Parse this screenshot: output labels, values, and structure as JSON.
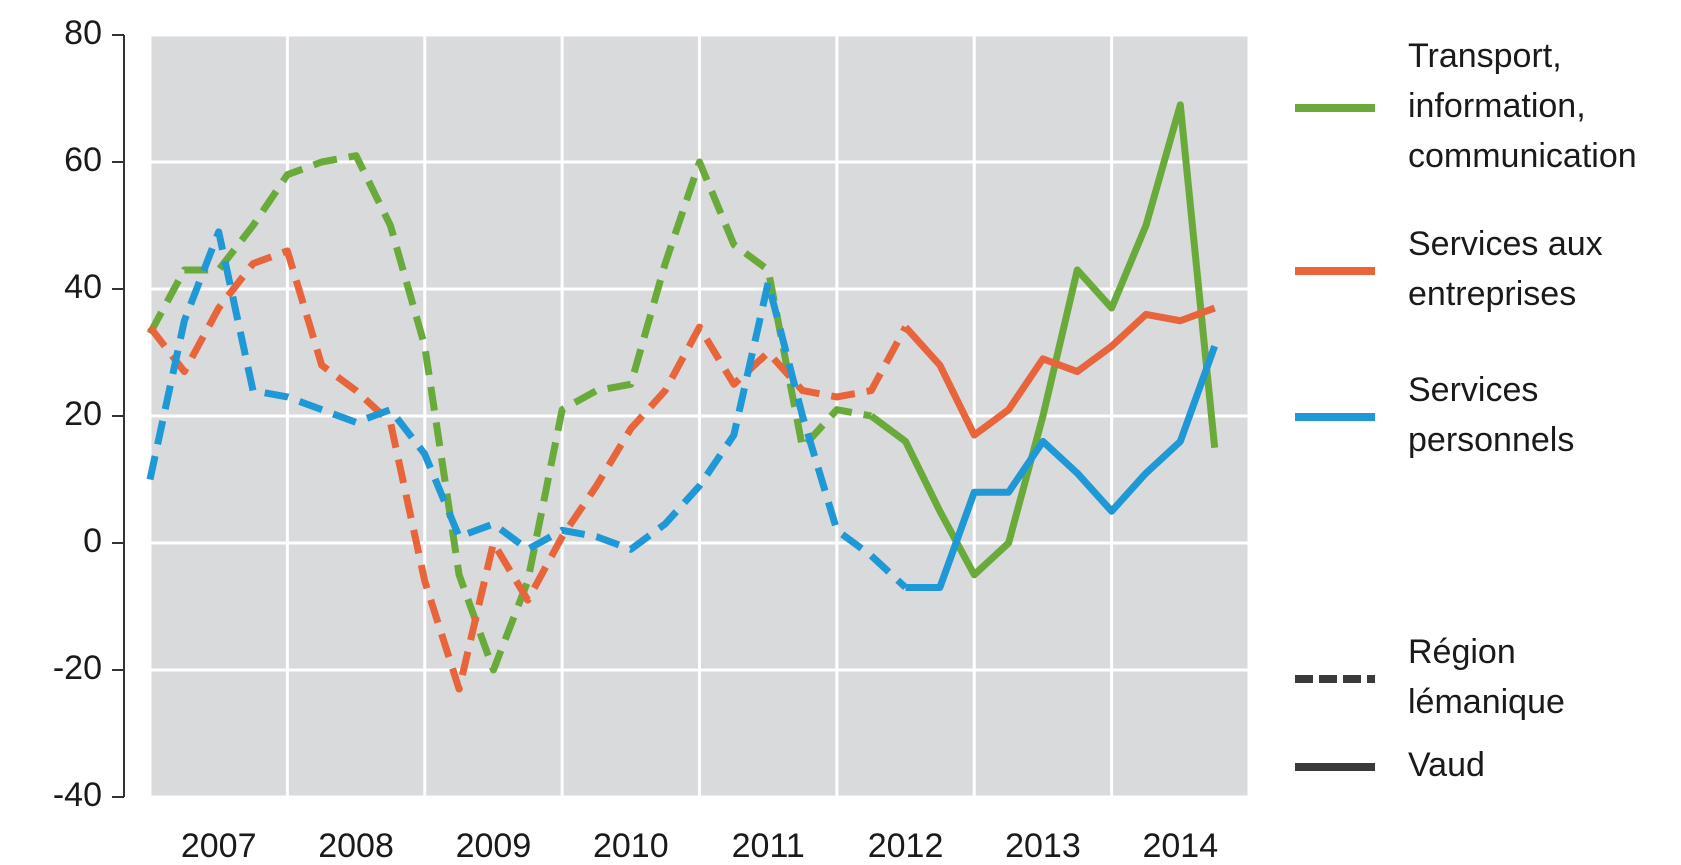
{
  "chart_data": {
    "type": "line",
    "x": [
      2007,
      2007.25,
      2007.5,
      2007.75,
      2008,
      2008.25,
      2008.5,
      2008.75,
      2009,
      2009.25,
      2009.5,
      2009.75,
      2010,
      2010.25,
      2010.5,
      2010.75,
      2011,
      2011.25,
      2011.5,
      2011.75,
      2012,
      2012.25,
      2012.5,
      2012.75,
      2013,
      2013.25,
      2013.5,
      2013.75,
      2014,
      2014.25,
      2014.5,
      2014.75
    ],
    "xlim": [
      2007,
      2015
    ],
    "xticks": [
      {
        "value": 2007.5,
        "label": "2007"
      },
      {
        "value": 2008.5,
        "label": "2008"
      },
      {
        "value": 2009.5,
        "label": "2009"
      },
      {
        "value": 2010.5,
        "label": "2010"
      },
      {
        "value": 2011.5,
        "label": "2011"
      },
      {
        "value": 2012.5,
        "label": "2012"
      },
      {
        "value": 2013.5,
        "label": "2013"
      },
      {
        "value": 2014.5,
        "label": "2014"
      }
    ],
    "ylim": [
      -40,
      80
    ],
    "yticks": [
      -40,
      -20,
      0,
      20,
      40,
      60,
      80
    ],
    "grid": true,
    "series": [
      {
        "name": "Transport, information, communication",
        "color": "#6aaa3a",
        "values": [
          33,
          43,
          43,
          50,
          58,
          60,
          61,
          50,
          31,
          -5,
          -20,
          -6,
          21,
          24,
          25,
          44,
          60,
          47,
          43,
          15,
          21,
          20,
          null,
          null,
          null,
          null,
          null,
          null,
          null,
          null,
          null,
          null
        ],
        "values_vaud": [
          null,
          null,
          null,
          null,
          null,
          null,
          null,
          null,
          null,
          null,
          null,
          null,
          null,
          null,
          null,
          null,
          null,
          null,
          null,
          null,
          null,
          20,
          16,
          5,
          -5,
          0,
          20,
          43,
          37,
          50,
          69,
          15
        ]
      },
      {
        "name": "Services aux entreprises",
        "color": "#e8643a",
        "values": [
          34,
          27,
          37,
          44,
          46,
          28,
          24,
          19,
          -6,
          -23,
          0,
          -9,
          1,
          9,
          18,
          24,
          34,
          25,
          30,
          24,
          23,
          24,
          34,
          null,
          null,
          null,
          null,
          null,
          null,
          null,
          null,
          null
        ],
        "values_vaud": [
          null,
          null,
          null,
          null,
          null,
          null,
          null,
          null,
          null,
          null,
          null,
          null,
          null,
          null,
          null,
          null,
          null,
          null,
          null,
          null,
          null,
          null,
          34,
          28,
          17,
          21,
          29,
          27,
          31,
          36,
          35,
          37
        ]
      },
      {
        "name": "Services personnels",
        "color": "#1f98d6",
        "values": [
          10,
          35,
          49,
          24,
          23,
          21,
          19,
          21,
          14,
          1,
          3,
          -1,
          2,
          1,
          -1,
          3,
          9,
          17,
          41,
          20,
          2,
          -2,
          -7,
          null,
          null,
          null,
          null,
          null,
          null,
          null,
          null,
          null
        ],
        "values_vaud": [
          null,
          null,
          null,
          null,
          null,
          null,
          null,
          null,
          null,
          null,
          null,
          null,
          null,
          null,
          null,
          null,
          null,
          null,
          null,
          null,
          null,
          null,
          -7,
          -7,
          8,
          8,
          16,
          11,
          5,
          11,
          16,
          31
        ]
      }
    ],
    "style_legend": [
      {
        "name": "Région lémanique",
        "dashed": true,
        "color": "#3a3a3a"
      },
      {
        "name": "Vaud",
        "dashed": false,
        "color": "#3a3a3a"
      }
    ]
  }
}
